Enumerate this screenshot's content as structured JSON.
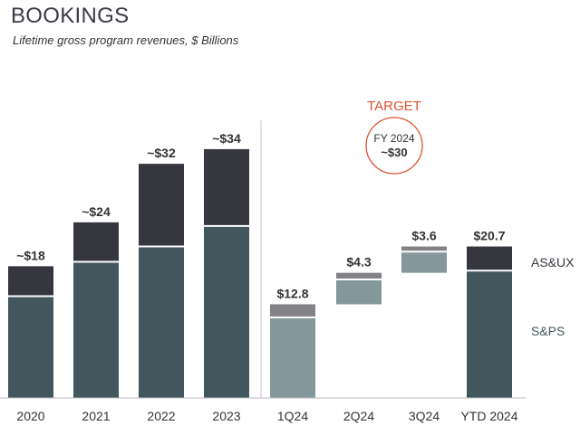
{
  "page": {
    "title": "BOOKINGS",
    "subtitle": "Lifetime gross program revenues, $ Billions"
  },
  "colors": {
    "asux": "#36363f",
    "sps": "#41575d",
    "sps_light": "#84979b",
    "asux_light": "#838387",
    "target": "#e0502d",
    "axis": "#b8b8c0",
    "text": "#333333"
  },
  "chart_data": {
    "type": "bar",
    "stacked": true,
    "y_unit": "$ Billions",
    "categories": [
      "2020",
      "2021",
      "2022",
      "2023",
      "1Q24",
      "2Q24",
      "3Q24",
      "YTD 2024"
    ],
    "bar_labels": [
      "~$18",
      "~$24",
      "~$32",
      "~$34",
      "$12.8",
      "$4.3",
      "$3.6",
      "$20.7"
    ],
    "totals": [
      18,
      24,
      32,
      34,
      12.8,
      4.3,
      3.6,
      20.7
    ],
    "sps_values": [
      13.9,
      18.6,
      20.7,
      23.5,
      11.0,
      3.4,
      2.9,
      17.4
    ],
    "asux_values": [
      4.1,
      5.4,
      11.3,
      10.5,
      1.8,
      0.9,
      0.7,
      3.3
    ],
    "bar_types": [
      "stack",
      "stack",
      "stack",
      "stack",
      "waterfall",
      "waterfall",
      "waterfall",
      "stack"
    ],
    "legend": [
      "AS&UX",
      "S&PS"
    ],
    "legend_placement": "right",
    "grid": false,
    "target": {
      "label": "TARGET",
      "period": "FY 2024",
      "value_label": "~$30",
      "value": 30
    }
  }
}
